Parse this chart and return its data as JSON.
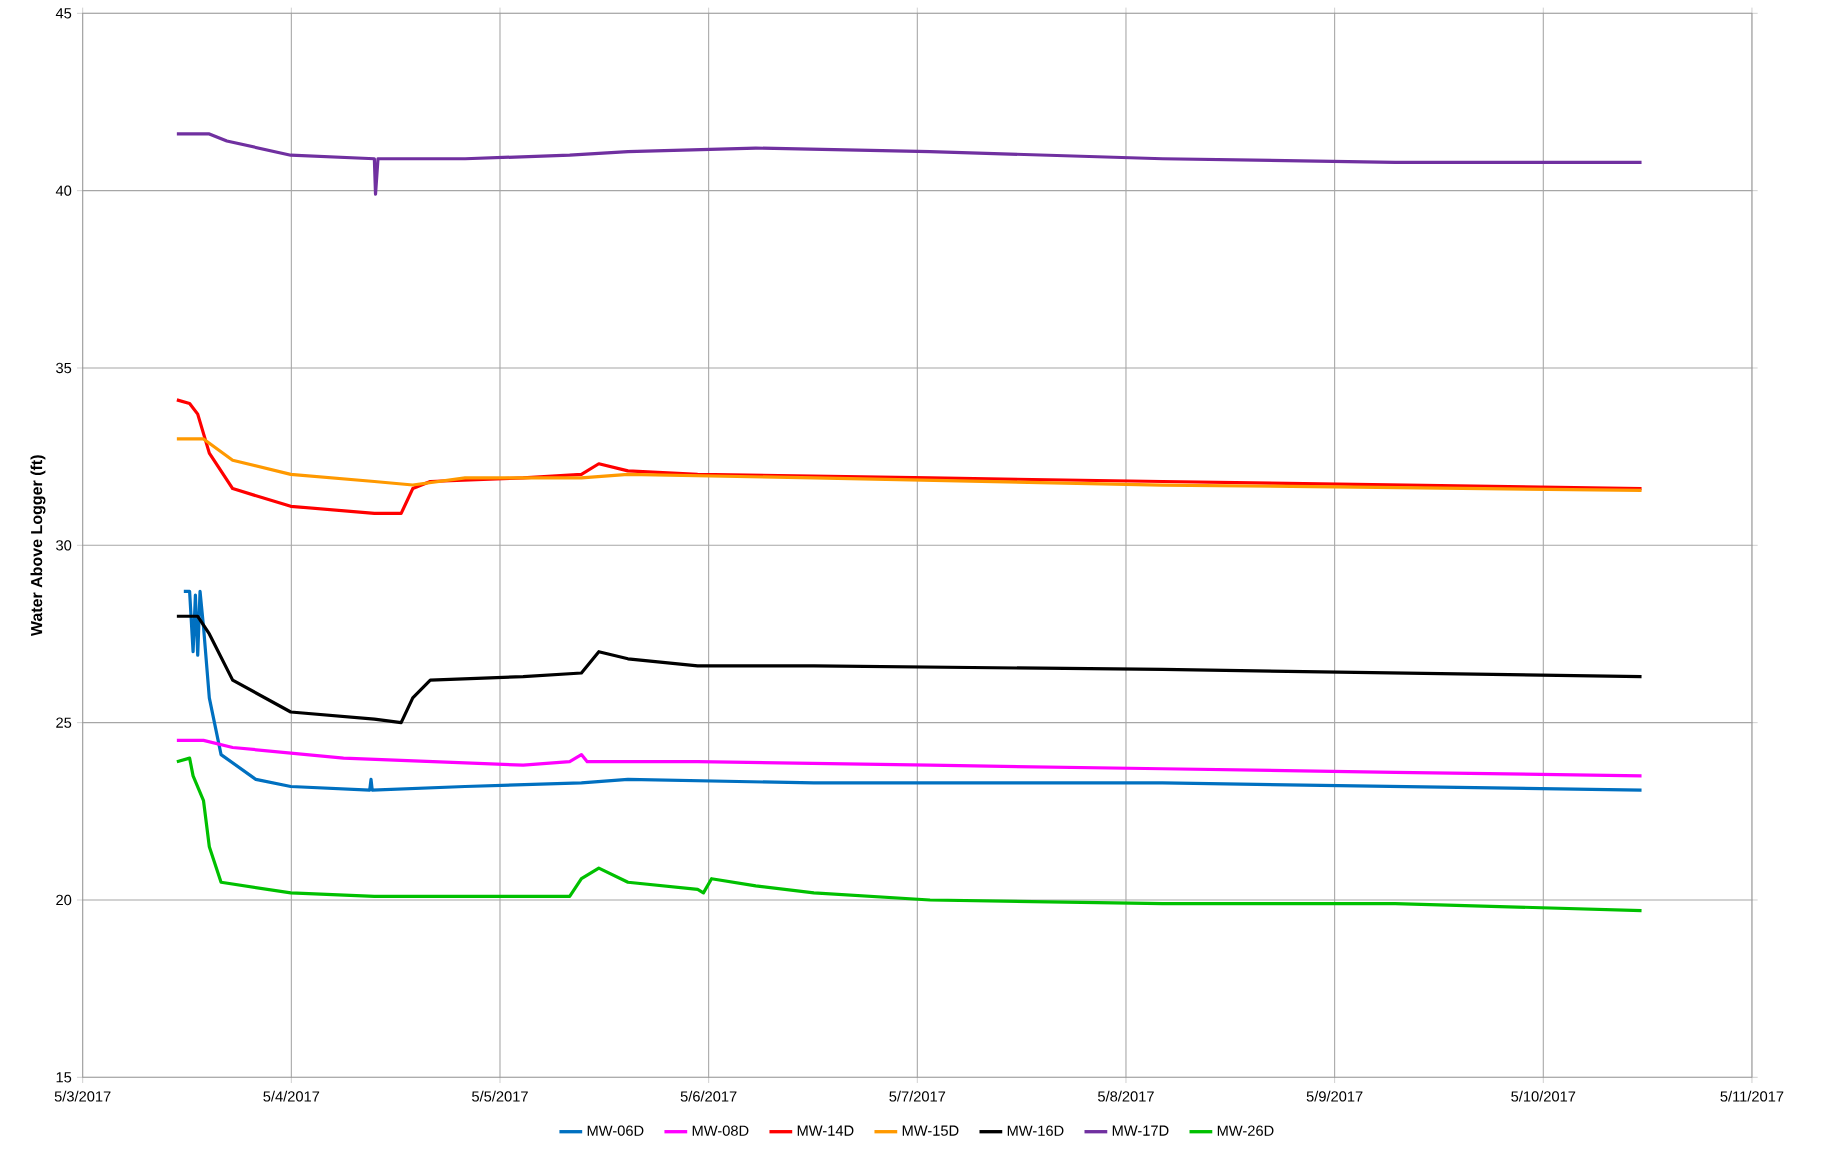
{
  "chart_data": {
    "type": "line",
    "ylabel": "Water Above Logger (ft)",
    "xlim": [
      "2017-05-03",
      "2017-05-11"
    ],
    "ylim": [
      15,
      45
    ],
    "xticks": [
      {
        "value": "2017-05-03",
        "label": "5/3/2017"
      },
      {
        "value": "2017-05-04",
        "label": "5/4/2017"
      },
      {
        "value": "2017-05-05",
        "label": "5/5/2017"
      },
      {
        "value": "2017-05-06",
        "label": "5/6/2017"
      },
      {
        "value": "2017-05-07",
        "label": "5/7/2017"
      },
      {
        "value": "2017-05-08",
        "label": "5/8/2017"
      },
      {
        "value": "2017-05-09",
        "label": "5/9/2017"
      },
      {
        "value": "2017-05-10",
        "label": "5/10/2017"
      },
      {
        "value": "2017-05-11",
        "label": "5/11/2017"
      }
    ],
    "yticks": [
      15,
      20,
      25,
      30,
      35,
      40,
      45
    ],
    "grid": true,
    "legend": "bottom",
    "marker": "none",
    "line_style": "solid",
    "series": [
      {
        "name": "MW-06D",
        "color": "#0070c0",
        "x": [
          "2017-05-03T11:38",
          "2017-05-03T12:18",
          "2017-05-03T12:42",
          "2017-05-03T12:58",
          "2017-05-03T13:14",
          "2017-05-03T13:30",
          "2017-05-03T13:54",
          "2017-05-03T14:34",
          "2017-05-03T15:55",
          "2017-05-03T19:55",
          "2017-05-03T23:56",
          "2017-05-04T09:01",
          "2017-05-04T09:10",
          "2017-05-04T09:18",
          "2017-05-04T19:59",
          "2017-05-05T09:22",
          "2017-05-05T14:43",
          "2017-05-06T12:06",
          "2017-05-08T04:12",
          "2017-05-10T11:18"
        ],
        "values": [
          28.7,
          28.7,
          27.0,
          28.6,
          26.9,
          28.7,
          27.7,
          25.7,
          24.1,
          23.4,
          23.2,
          23.1,
          23.4,
          23.1,
          23.2,
          23.3,
          23.4,
          23.3,
          23.3,
          23.1
        ]
      },
      {
        "name": "MW-08D",
        "color": "#ff00ff",
        "x": [
          "2017-05-03T10:50",
          "2017-05-03T13:54",
          "2017-05-03T17:15",
          "2017-05-04T06:00",
          "2017-05-05T02:40",
          "2017-05-05T08:01",
          "2017-05-05T09:22",
          "2017-05-05T10:02",
          "2017-05-05T22:44",
          "2017-05-07T01:28",
          "2017-05-08T04:12",
          "2017-05-09T06:57",
          "2017-05-10T11:18"
        ],
        "values": [
          24.5,
          24.5,
          24.3,
          24.0,
          23.8,
          23.9,
          24.1,
          23.9,
          23.9,
          23.8,
          23.7,
          23.6,
          23.5
        ]
      },
      {
        "name": "MW-14D",
        "color": "#ff0000",
        "x": [
          "2017-05-03T10:50",
          "2017-05-03T12:18",
          "2017-05-03T13:14",
          "2017-05-03T14:34",
          "2017-05-03T17:15",
          "2017-05-03T23:56",
          "2017-05-04T09:33",
          "2017-05-04T12:38",
          "2017-05-04T13:58",
          "2017-05-04T15:59",
          "2017-05-05T02:40",
          "2017-05-05T09:22",
          "2017-05-05T11:22",
          "2017-05-05T14:43",
          "2017-05-05T22:44",
          "2017-05-07T01:28",
          "2017-05-08T04:12",
          "2017-05-10T11:18"
        ],
        "values": [
          34.1,
          34.0,
          33.7,
          32.6,
          31.6,
          31.1,
          30.9,
          30.9,
          31.6,
          31.8,
          31.9,
          32.0,
          32.3,
          32.1,
          32.0,
          31.9,
          31.8,
          31.6
        ]
      },
      {
        "name": "MW-15D",
        "color": "#ff9900",
        "x": [
          "2017-05-03T10:50",
          "2017-05-03T13:54",
          "2017-05-03T17:15",
          "2017-05-03T23:56",
          "2017-05-04T09:33",
          "2017-05-04T13:58",
          "2017-05-04T19:59",
          "2017-05-05T09:22",
          "2017-05-05T14:43",
          "2017-05-06T12:06",
          "2017-05-08T04:12",
          "2017-05-10T11:18"
        ],
        "values": [
          33.0,
          33.0,
          32.4,
          32.0,
          31.8,
          31.7,
          31.9,
          31.9,
          32.0,
          31.9,
          31.7,
          31.55
        ]
      },
      {
        "name": "MW-16D",
        "color": "#000000",
        "x": [
          "2017-05-03T10:50",
          "2017-05-03T13:14",
          "2017-05-03T14:34",
          "2017-05-03T17:15",
          "2017-05-03T23:56",
          "2017-05-04T09:33",
          "2017-05-04T12:38",
          "2017-05-04T13:58",
          "2017-05-04T15:59",
          "2017-05-05T02:40",
          "2017-05-05T09:22",
          "2017-05-05T11:22",
          "2017-05-05T14:43",
          "2017-05-05T22:44",
          "2017-05-06T12:06",
          "2017-05-08T04:12",
          "2017-05-10T11:18"
        ],
        "values": [
          28.0,
          28.0,
          27.5,
          26.2,
          25.3,
          25.1,
          25.0,
          25.7,
          26.2,
          26.3,
          26.4,
          27.0,
          26.8,
          26.6,
          26.6,
          26.5,
          26.3
        ]
      },
      {
        "name": "MW-17D",
        "color": "#7030a0",
        "x": [
          "2017-05-03T10:50",
          "2017-05-03T14:34",
          "2017-05-03T16:35",
          "2017-05-03T23:56",
          "2017-05-04T09:33",
          "2017-05-04T09:41",
          "2017-05-04T09:58",
          "2017-05-04T19:59",
          "2017-05-05T08:01",
          "2017-05-05T14:43",
          "2017-05-06T05:25",
          "2017-05-07T01:28",
          "2017-05-08T04:12",
          "2017-05-09T06:57",
          "2017-05-10T11:18"
        ],
        "values": [
          41.6,
          41.6,
          41.4,
          41.0,
          40.9,
          39.9,
          40.9,
          40.9,
          41.0,
          41.1,
          41.2,
          41.1,
          40.9,
          40.8,
          40.8
        ]
      },
      {
        "name": "MW-26D",
        "color": "#00c000",
        "x": [
          "2017-05-03T10:50",
          "2017-05-03T12:18",
          "2017-05-03T12:42",
          "2017-05-03T13:54",
          "2017-05-03T14:34",
          "2017-05-03T15:55",
          "2017-05-03T23:56",
          "2017-05-04T09:33",
          "2017-05-04T19:59",
          "2017-05-05T08:01",
          "2017-05-05T09:22",
          "2017-05-05T11:22",
          "2017-05-05T14:43",
          "2017-05-05T22:44",
          "2017-05-05T23:24",
          "2017-05-06T00:20",
          "2017-05-06T05:25",
          "2017-05-06T12:06",
          "2017-05-07T01:28",
          "2017-05-08T04:12",
          "2017-05-09T06:57",
          "2017-05-10T11:18"
        ],
        "values": [
          23.9,
          24.0,
          23.5,
          22.8,
          21.5,
          20.5,
          20.2,
          20.1,
          20.1,
          20.1,
          20.6,
          20.9,
          20.5,
          20.3,
          20.2,
          20.6,
          20.4,
          20.2,
          20.0,
          19.9,
          19.9,
          19.7
        ]
      }
    ]
  }
}
